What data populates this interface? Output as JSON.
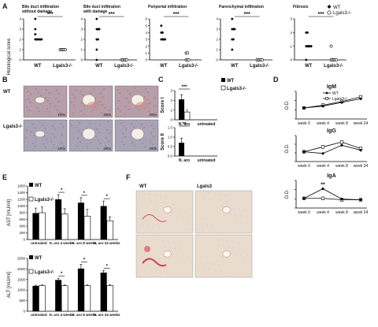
{
  "panels": {
    "A": "A",
    "B": "B",
    "C": "C",
    "D": "D",
    "E": "E",
    "F": "F"
  },
  "panel_a": {
    "ylabel": "Histological score",
    "legend": [
      "WT",
      "Lgals3-/-"
    ],
    "plots": [
      {
        "title": "Bile duct infiltration without damage",
        "sig": "***",
        "wt": [
          2,
          2,
          2,
          2,
          2,
          2,
          2.5,
          3,
          4
        ],
        "ko": [
          1,
          1,
          1,
          1,
          1
        ],
        "ymax": 4
      },
      {
        "title": "Bile duct infiltration with damage",
        "sig": "***",
        "wt": [
          0,
          1,
          2,
          2,
          3,
          3,
          3,
          4
        ],
        "ko": [
          0,
          0,
          0,
          0,
          0
        ],
        "ymax": 4
      },
      {
        "title": "Periportal infiltration",
        "sig": "***",
        "wt": [
          3,
          3,
          3,
          3,
          4,
          4,
          5
        ],
        "ko": [
          0,
          0,
          0,
          1,
          1
        ],
        "ymax": 6
      },
      {
        "title": "Parenchymal infiltration",
        "sig": "***",
        "wt": [
          1,
          2,
          2,
          3,
          3,
          3,
          4
        ],
        "ko": [
          0,
          0,
          0,
          0,
          0
        ],
        "ymax": 4
      },
      {
        "title": "Fibrosis",
        "sig": "***",
        "wt": [
          0,
          1,
          1,
          1,
          1,
          1,
          2,
          2
        ],
        "ko": [
          0,
          0,
          0,
          0,
          0,
          1
        ],
        "ymax": 3
      }
    ],
    "xlabels": [
      "WT",
      "Lgals3-/-"
    ]
  },
  "panel_b": {
    "row1": "WT",
    "row2": "Lgals3-/-",
    "mag": [
      "100x",
      "400x",
      "400x",
      "100x",
      "400x",
      "400x"
    ],
    "tint_wt": "#b79ea8",
    "tint_ko": "#a9a3b6"
  },
  "panel_c": {
    "legend": [
      "WT",
      "Lgals3-/-"
    ],
    "score1": {
      "label": "Score I",
      "sig": "***",
      "categories": [
        "N. aro",
        "untreated"
      ],
      "wt": [
        2.1,
        0
      ],
      "ko": [
        0.8,
        0
      ],
      "ymax": 3,
      "ticks": [
        "0",
        "1",
        "2",
        "3"
      ]
    },
    "score2": {
      "label": "Score II",
      "sig": "**",
      "categories": [
        "N. aro",
        "untreated"
      ],
      "wt": [
        0.7,
        0
      ],
      "ko": [
        0,
        0
      ],
      "ymax": 1.5,
      "ticks": [
        "0.0",
        "0.5",
        "1.0",
        "1.5"
      ]
    }
  },
  "panel_d": {
    "ylabel": "O.D.",
    "legend": [
      "WT",
      "Lgals3-/-"
    ],
    "x": [
      "week 0",
      "week 4",
      "week 8",
      "week 24"
    ],
    "plots": [
      {
        "title": "IgM",
        "wt": [
          2.1,
          2.2,
          2.4,
          2.6
        ],
        "ko": [
          2.1,
          2.25,
          2.45,
          2.7
        ],
        "ylim": [
          1.5,
          3
        ],
        "ticks": [
          "",
          "",
          "",
          ""
        ]
      },
      {
        "title": "IgG",
        "wt": [
          0.3,
          0.25,
          0.5,
          0.35
        ],
        "ko": [
          0.3,
          0.45,
          0.6,
          0.4
        ],
        "ylim": [
          0,
          0.8
        ],
        "ticks": [
          "",
          "",
          "",
          ""
        ]
      },
      {
        "title": "IgA",
        "sig": "**",
        "wt": [
          0.7,
          1.4,
          0.65,
          0.6
        ],
        "ko": [
          0.7,
          0.7,
          0.6,
          0.6
        ],
        "ylim": [
          0,
          2
        ],
        "ticks": [
          "",
          "",
          "",
          ""
        ]
      }
    ]
  },
  "panel_e": {
    "categories": [
      "untreated",
      "N. aro 4 weeks",
      "N. aro 8 weeks",
      "N. aro 24 weeks"
    ],
    "legend": [
      "WT",
      "Lgals3-/-"
    ],
    "ast": {
      "ylabel": "AST [mU/ml]",
      "wt": [
        790,
        1200,
        1100,
        1000
      ],
      "ko": [
        800,
        760,
        700,
        560
      ],
      "err_wt": [
        150,
        140,
        150,
        150
      ],
      "err_ko": [
        170,
        160,
        200,
        120
      ],
      "sig": [
        "",
        "*",
        "*",
        "*"
      ],
      "ymax": 1600,
      "ticks": [
        "0",
        "200",
        "400",
        "600",
        "800",
        "1000",
        "1200",
        "1400",
        "1600"
      ]
    },
    "alt": {
      "ylabel": "ALT [mU/ml]",
      "wt": [
        1200,
        1480,
        2020,
        1830
      ],
      "ko": [
        1220,
        1210,
        1220,
        1220
      ],
      "err_wt": [
        30,
        80,
        200,
        100
      ],
      "err_ko": [
        30,
        30,
        40,
        40
      ],
      "sig": [
        "",
        "*",
        "*",
        "*"
      ],
      "ymax": 2500,
      "ticks": [
        "0",
        "500",
        "1000",
        "1500",
        "2000",
        "2500"
      ]
    }
  },
  "panel_f": {
    "wt": "WT",
    "ko": "Lgals3",
    "tint": "#e9dccf"
  }
}
